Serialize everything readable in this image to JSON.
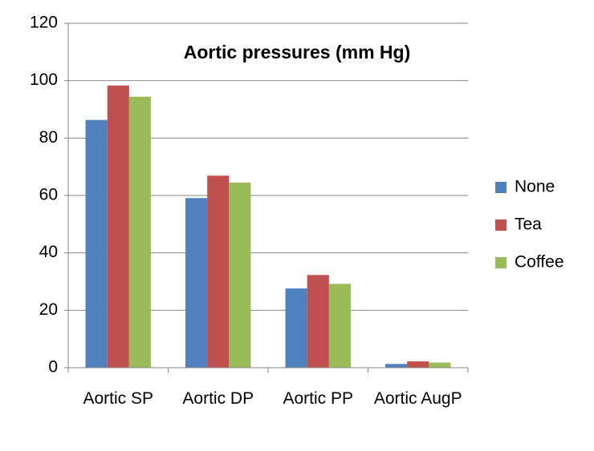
{
  "chart_data": {
    "type": "bar",
    "title": "Aortic pressures (mm Hg)",
    "categories": [
      "Aortic SP",
      "Aortic DP",
      "Aortic PP",
      "Aortic AugP"
    ],
    "series": [
      {
        "name": "None",
        "color": "#4f81bd",
        "values": [
          86.3,
          59.1,
          27.6,
          1.3
        ]
      },
      {
        "name": "Tea",
        "color": "#c0504d",
        "values": [
          98.3,
          66.9,
          32.3,
          2.2
        ]
      },
      {
        "name": "Coffee",
        "color": "#9bbb59",
        "values": [
          94.4,
          64.5,
          29.2,
          1.8
        ]
      }
    ],
    "ylim": [
      0,
      120
    ],
    "yticks": [
      0,
      20,
      40,
      60,
      80,
      100,
      120
    ],
    "grid": true,
    "legend": "right"
  }
}
